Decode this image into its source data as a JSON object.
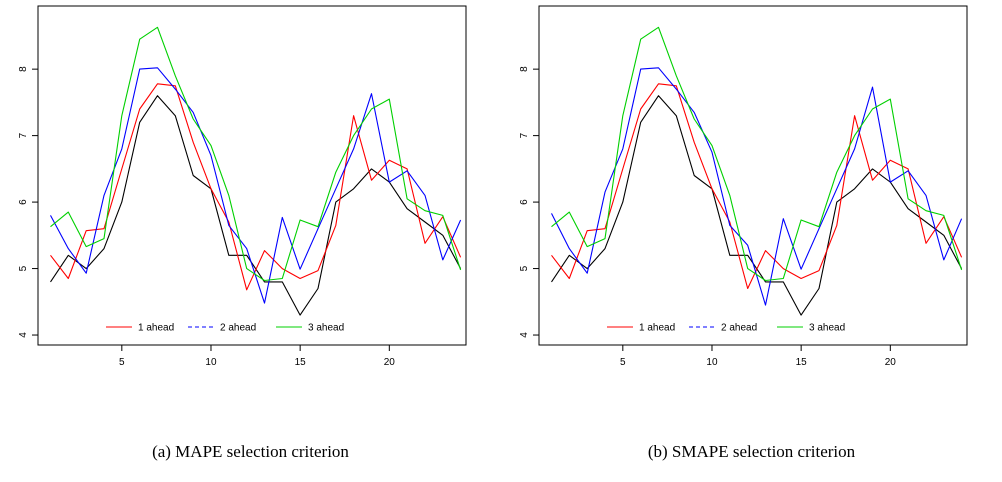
{
  "chart_data": [
    {
      "type": "line",
      "caption": "(a) MAPE selection criterion",
      "x": [
        1,
        2,
        3,
        4,
        5,
        6,
        7,
        8,
        9,
        10,
        11,
        12,
        13,
        14,
        15,
        16,
        17,
        18,
        19,
        20,
        21,
        22,
        23,
        24
      ],
      "xlim": [
        0.3,
        24.3
      ],
      "ylim": [
        3.85,
        8.95
      ],
      "xticks": [
        "5",
        "10",
        "15",
        "20"
      ],
      "yticks": [
        "4",
        "5",
        "6",
        "7",
        "8"
      ],
      "grid": false,
      "legend_position": "bottom-center",
      "series": [
        {
          "name": "",
          "color": "#000000",
          "dashed": false,
          "values": [
            4.8,
            5.2,
            5.0,
            5.3,
            6.0,
            7.2,
            7.6,
            7.3,
            6.4,
            6.2,
            5.2,
            5.2,
            4.8,
            4.8,
            4.3,
            4.7,
            6.0,
            6.2,
            6.5,
            6.3,
            5.9,
            5.7,
            5.5,
            5.0
          ]
        },
        {
          "name": "1 ahead",
          "color": "#ff0000",
          "dashed": false,
          "values": [
            5.2,
            4.85,
            5.57,
            5.6,
            6.5,
            7.4,
            7.78,
            7.75,
            6.9,
            6.2,
            5.7,
            4.68,
            5.27,
            5.0,
            4.85,
            4.97,
            5.65,
            7.3,
            6.33,
            6.63,
            6.5,
            5.38,
            5.78,
            5.17
          ]
        },
        {
          "name": "2 ahead",
          "color": "#0000ff",
          "dashed": true,
          "values": [
            5.8,
            5.3,
            4.93,
            6.1,
            6.8,
            8.0,
            8.02,
            7.7,
            7.35,
            6.7,
            5.65,
            5.3,
            4.48,
            5.77,
            4.99,
            5.6,
            6.2,
            6.8,
            7.63,
            6.3,
            6.47,
            6.1,
            5.13,
            5.73
          ]
        },
        {
          "name": "3 ahead",
          "color": "#00d000",
          "dashed": false,
          "values": [
            5.63,
            5.85,
            5.33,
            5.45,
            7.3,
            8.45,
            8.63,
            7.9,
            7.25,
            6.85,
            6.1,
            5.0,
            4.82,
            4.85,
            5.73,
            5.63,
            6.45,
            7.0,
            7.4,
            7.55,
            6.05,
            5.87,
            5.8,
            4.98
          ]
        }
      ]
    },
    {
      "type": "line",
      "caption": "(b) SMAPE selection criterion",
      "x": [
        1,
        2,
        3,
        4,
        5,
        6,
        7,
        8,
        9,
        10,
        11,
        12,
        13,
        14,
        15,
        16,
        17,
        18,
        19,
        20,
        21,
        22,
        23,
        24
      ],
      "xlim": [
        0.3,
        24.3
      ],
      "ylim": [
        3.85,
        8.95
      ],
      "xticks": [
        "5",
        "10",
        "15",
        "20"
      ],
      "yticks": [
        "4",
        "5",
        "6",
        "7",
        "8"
      ],
      "grid": false,
      "legend_position": "bottom-center",
      "series": [
        {
          "name": "",
          "color": "#000000",
          "dashed": false,
          "values": [
            4.8,
            5.2,
            5.0,
            5.3,
            6.0,
            7.2,
            7.6,
            7.3,
            6.4,
            6.2,
            5.2,
            5.2,
            4.8,
            4.8,
            4.3,
            4.7,
            6.0,
            6.2,
            6.5,
            6.3,
            5.9,
            5.7,
            5.5,
            5.0
          ]
        },
        {
          "name": "1 ahead",
          "color": "#ff0000",
          "dashed": false,
          "values": [
            5.2,
            4.85,
            5.57,
            5.6,
            6.5,
            7.4,
            7.78,
            7.75,
            6.9,
            6.2,
            5.7,
            4.7,
            5.27,
            5.0,
            4.85,
            4.97,
            5.65,
            7.3,
            6.33,
            6.63,
            6.5,
            5.38,
            5.78,
            5.17
          ]
        },
        {
          "name": "2 ahead",
          "color": "#0000ff",
          "dashed": true,
          "values": [
            5.83,
            5.3,
            4.93,
            6.15,
            6.8,
            8.0,
            8.02,
            7.7,
            7.35,
            6.75,
            5.65,
            5.35,
            4.45,
            5.75,
            4.99,
            5.6,
            6.2,
            6.8,
            7.73,
            6.3,
            6.47,
            6.1,
            5.13,
            5.75
          ]
        },
        {
          "name": "3 ahead",
          "color": "#00d000",
          "dashed": false,
          "values": [
            5.63,
            5.85,
            5.33,
            5.45,
            7.3,
            8.45,
            8.63,
            7.9,
            7.25,
            6.85,
            6.1,
            5.0,
            4.82,
            4.85,
            5.73,
            5.63,
            6.45,
            7.0,
            7.4,
            7.55,
            6.05,
            5.87,
            5.8,
            4.98
          ]
        }
      ]
    }
  ]
}
